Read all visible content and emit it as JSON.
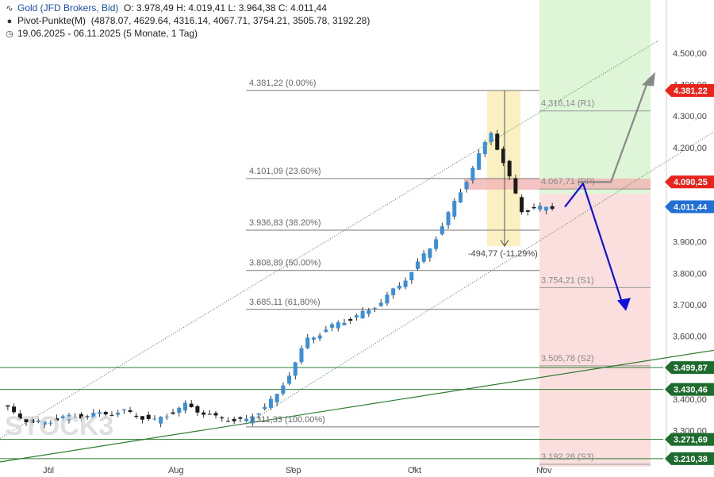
{
  "header": {
    "instrument_label": "Gold (JFD Brokers, Bid)",
    "ohlc": "O: 3.978,49  H: 4.019,41  L: 3.964,38  C: 4.011,44",
    "pivot_label": "Pivot-Punkte(M)",
    "pivot_values": "(4878.07, 4629.64, 4316.14, 4067.71, 3754.21, 3505.78, 3192.28)",
    "range_label": "19.06.2025 - 06.11.2025  (5 Monate, 1 Tag)"
  },
  "watermark": "STOCK3",
  "colors": {
    "bull": "#3a8fd9",
    "bear": "#1a1a1a",
    "support_line": "#2e7d32",
    "target_up": "#888888",
    "target_down": "#1010dd",
    "current_price_tag": "#1f6fd6",
    "resistance_tag": "#e8241c",
    "support_tag": "#1e6b2e"
  },
  "chart_data": {
    "type": "candlestick",
    "title": "",
    "x_tick_labels": [
      "Jul",
      "Aug",
      "Sep",
      "Okt",
      "Nov"
    ],
    "y_tick_labels": [
      "3.300,00",
      "3.400,00",
      "3.600,00",
      "3.700,00",
      "3.800,00",
      "3.900,00",
      "4.200,00",
      "4.300,00",
      "4.400,00",
      "4.500,00"
    ],
    "ylim": [
      3200,
      4530
    ],
    "grid": false,
    "candles_weekly_approx": [
      {
        "period": "Jun W4",
        "o": 3380,
        "h": 3400,
        "l": 3300,
        "c": 3320
      },
      {
        "period": "Jul W1",
        "o": 3320,
        "h": 3345,
        "l": 3250,
        "c": 3340
      },
      {
        "period": "Jul W2",
        "o": 3340,
        "h": 3370,
        "l": 3290,
        "c": 3350
      },
      {
        "period": "Jul W3",
        "o": 3350,
        "h": 3390,
        "l": 3310,
        "c": 3360
      },
      {
        "period": "Jul W4",
        "o": 3360,
        "h": 3440,
        "l": 3320,
        "c": 3330
      },
      {
        "period": "Aug W1",
        "o": 3330,
        "h": 3390,
        "l": 3270,
        "c": 3380
      },
      {
        "period": "Aug W2",
        "o": 3380,
        "h": 3400,
        "l": 3330,
        "c": 3340
      },
      {
        "period": "Aug W3",
        "o": 3340,
        "h": 3360,
        "l": 3310,
        "c": 3330
      },
      {
        "period": "Aug W4",
        "o": 3330,
        "h": 3420,
        "l": 3320,
        "c": 3410
      },
      {
        "period": "Sep W1",
        "o": 3410,
        "h": 3600,
        "l": 3400,
        "c": 3590
      },
      {
        "period": "Sep W2",
        "o": 3590,
        "h": 3660,
        "l": 3570,
        "c": 3640
      },
      {
        "period": "Sep W3",
        "o": 3640,
        "h": 3700,
        "l": 3620,
        "c": 3680
      },
      {
        "period": "Sep W4",
        "o": 3680,
        "h": 3800,
        "l": 3670,
        "c": 3760
      },
      {
        "period": "Okt W1",
        "o": 3760,
        "h": 3900,
        "l": 3750,
        "c": 3880
      },
      {
        "period": "Okt W2",
        "o": 3880,
        "h": 4080,
        "l": 3870,
        "c": 4060
      },
      {
        "period": "Okt W3",
        "o": 4060,
        "h": 4381.22,
        "l": 4040,
        "c": 4250
      },
      {
        "period": "Okt W4",
        "o": 4250,
        "h": 4260,
        "l": 3886,
        "c": 4000
      },
      {
        "period": "Nov W1",
        "o": 4000,
        "h": 4050,
        "l": 3930,
        "c": 4011.44
      }
    ],
    "fibonacci": [
      {
        "label": "4.381,22 (0.00%)",
        "value": 4381.22
      },
      {
        "label": "4.101,09 (23.60%)",
        "value": 4101.09
      },
      {
        "label": "3.936,83 (38.20%)",
        "value": 3936.83
      },
      {
        "label": "3.808,89 (50.00%)",
        "value": 3808.89
      },
      {
        "label": "3.685,11 (61,80%)",
        "value": 3685.11
      },
      {
        "label": "3.311,33 (100.00%)",
        "value": 3311.33
      }
    ],
    "pivots": [
      {
        "label": "4.316,14 (R1)",
        "value": 4316.14
      },
      {
        "label": "4.067,71 (PP)",
        "value": 4067.71
      },
      {
        "label": "3.754,21 (S1)",
        "value": 3754.21
      },
      {
        "label": "3.505,78 (S2)",
        "value": 3505.78
      },
      {
        "label": "3.192,28 (S3)",
        "value": 3192.28
      }
    ],
    "price_tags": [
      {
        "label": "4.381,22",
        "kind": "resistance",
        "value": 4381.22
      },
      {
        "label": "4.090,25",
        "kind": "resistance",
        "value": 4090.25
      },
      {
        "label": "4.011,44",
        "kind": "current",
        "value": 4011.44
      },
      {
        "label": "3.499,87",
        "kind": "support",
        "value": 3499.87
      },
      {
        "label": "3.430,46",
        "kind": "support",
        "value": 3430.46
      },
      {
        "label": "3.271,69",
        "kind": "support",
        "value": 3271.69
      },
      {
        "label": "3.210,38",
        "kind": "support",
        "value": 3210.38
      }
    ],
    "correction_annotation": "-494,77 (-11,29%)"
  }
}
